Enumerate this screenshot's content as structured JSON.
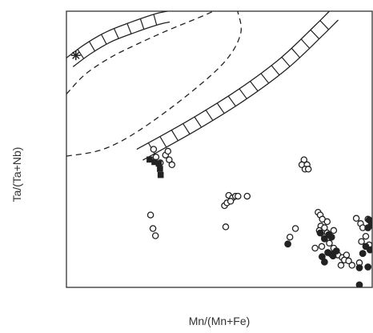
{
  "chart_data": {
    "type": "scatter",
    "title": "",
    "xlabel": "Mn/(Mn+Fe)",
    "ylabel": "Ta/(Ta+Nb)",
    "xlim": [
      0,
      1
    ],
    "ylim": [
      0,
      1
    ],
    "grid": false,
    "colors": {
      "ink": "#222222",
      "axis": "#333333",
      "paper": "#ffffff"
    },
    "series": [
      {
        "marker": "open-circle",
        "points": [
          [
            0.285,
            0.5
          ],
          [
            0.293,
            0.472
          ],
          [
            0.307,
            0.451
          ],
          [
            0.324,
            0.479
          ],
          [
            0.332,
            0.493
          ],
          [
            0.336,
            0.462
          ],
          [
            0.345,
            0.444
          ],
          [
            0.275,
            0.262
          ],
          [
            0.283,
            0.213
          ],
          [
            0.291,
            0.187
          ],
          [
            0.531,
            0.333
          ],
          [
            0.543,
            0.324
          ],
          [
            0.553,
            0.33
          ],
          [
            0.561,
            0.33
          ],
          [
            0.591,
            0.33
          ],
          [
            0.517,
            0.296
          ],
          [
            0.525,
            0.306
          ],
          [
            0.537,
            0.312
          ],
          [
            0.521,
            0.219
          ],
          [
            0.777,
            0.462
          ],
          [
            0.77,
            0.444
          ],
          [
            0.787,
            0.444
          ],
          [
            0.78,
            0.428
          ],
          [
            0.791,
            0.428
          ],
          [
            0.749,
            0.213
          ],
          [
            0.731,
            0.182
          ],
          [
            0.823,
            0.272
          ],
          [
            0.83,
            0.262
          ],
          [
            0.837,
            0.247
          ],
          [
            0.853,
            0.238
          ],
          [
            0.832,
            0.222
          ],
          [
            0.844,
            0.216
          ],
          [
            0.827,
            0.206
          ],
          [
            0.853,
            0.197
          ],
          [
            0.874,
            0.206
          ],
          [
            0.844,
            0.182
          ],
          [
            0.86,
            0.16
          ],
          [
            0.835,
            0.148
          ],
          [
            0.813,
            0.142
          ],
          [
            0.874,
            0.142
          ],
          [
            0.888,
            0.117
          ],
          [
            0.902,
            0.108
          ],
          [
            0.916,
            0.117
          ],
          [
            0.909,
            0.099
          ],
          [
            0.923,
            0.096
          ],
          [
            0.898,
            0.08
          ],
          [
            0.934,
            0.08
          ],
          [
            0.958,
            0.089
          ],
          [
            0.948,
            0.25
          ],
          [
            0.962,
            0.231
          ],
          [
            0.986,
            0.247
          ],
          [
            0.969,
            0.216
          ],
          [
            0.979,
            0.185
          ],
          [
            0.965,
            0.166
          ],
          [
            0.99,
            0.154
          ]
        ]
      },
      {
        "marker": "filled-square",
        "points": [
          [
            0.272,
            0.463
          ],
          [
            0.288,
            0.454
          ],
          [
            0.302,
            0.448
          ],
          [
            0.306,
            0.429
          ],
          [
            0.308,
            0.407
          ]
        ]
      },
      {
        "marker": "filled-circle",
        "points": [
          [
            0.724,
            0.157
          ],
          [
            0.83,
            0.197
          ],
          [
            0.844,
            0.176
          ],
          [
            0.858,
            0.191
          ],
          [
            0.867,
            0.182
          ],
          [
            0.855,
            0.126
          ],
          [
            0.867,
            0.12
          ],
          [
            0.836,
            0.111
          ],
          [
            0.844,
            0.092
          ],
          [
            0.872,
            0.114
          ],
          [
            0.883,
            0.132
          ],
          [
            0.958,
            0.071
          ],
          [
            0.986,
            0.074
          ],
          [
            0.993,
            0.136
          ],
          [
            0.969,
            0.123
          ],
          [
            0.979,
            0.148
          ],
          [
            0.986,
            0.216
          ],
          [
            0.99,
            0.244
          ],
          [
            0.997,
            0.225
          ],
          [
            0.958,
            0.009
          ]
        ]
      },
      {
        "marker": "asterisk",
        "points": [
          [
            0.031,
            0.84
          ]
        ]
      }
    ],
    "fields": [
      {
        "kind": "hatched-band",
        "curve": [
          [
            0.0,
            0.831
          ],
          [
            0.06,
            0.88
          ],
          [
            0.13,
            0.925
          ],
          [
            0.21,
            0.96
          ],
          [
            0.29,
            0.99
          ],
          [
            0.33,
            1.0
          ]
        ],
        "width": 0.04
      },
      {
        "kind": "hatched-band",
        "curve": [
          [
            0.23,
            0.5
          ],
          [
            0.4,
            0.605
          ],
          [
            0.56,
            0.715
          ],
          [
            0.7,
            0.83
          ],
          [
            0.81,
            0.945
          ],
          [
            0.86,
            1.0
          ]
        ],
        "width": 0.045
      },
      {
        "kind": "dashed-curve",
        "curve": [
          [
            0.0,
            0.475
          ],
          [
            0.12,
            0.5
          ],
          [
            0.24,
            0.57
          ],
          [
            0.4,
            0.7
          ],
          [
            0.52,
            0.82
          ],
          [
            0.57,
            0.92
          ],
          [
            0.56,
            1.0
          ]
        ]
      },
      {
        "kind": "dashed-curve",
        "curve": [
          [
            0.0,
            0.7
          ],
          [
            0.06,
            0.77
          ],
          [
            0.14,
            0.83
          ],
          [
            0.23,
            0.88
          ],
          [
            0.33,
            0.93
          ],
          [
            0.44,
            0.98
          ],
          [
            0.48,
            1.0
          ]
        ]
      }
    ]
  }
}
